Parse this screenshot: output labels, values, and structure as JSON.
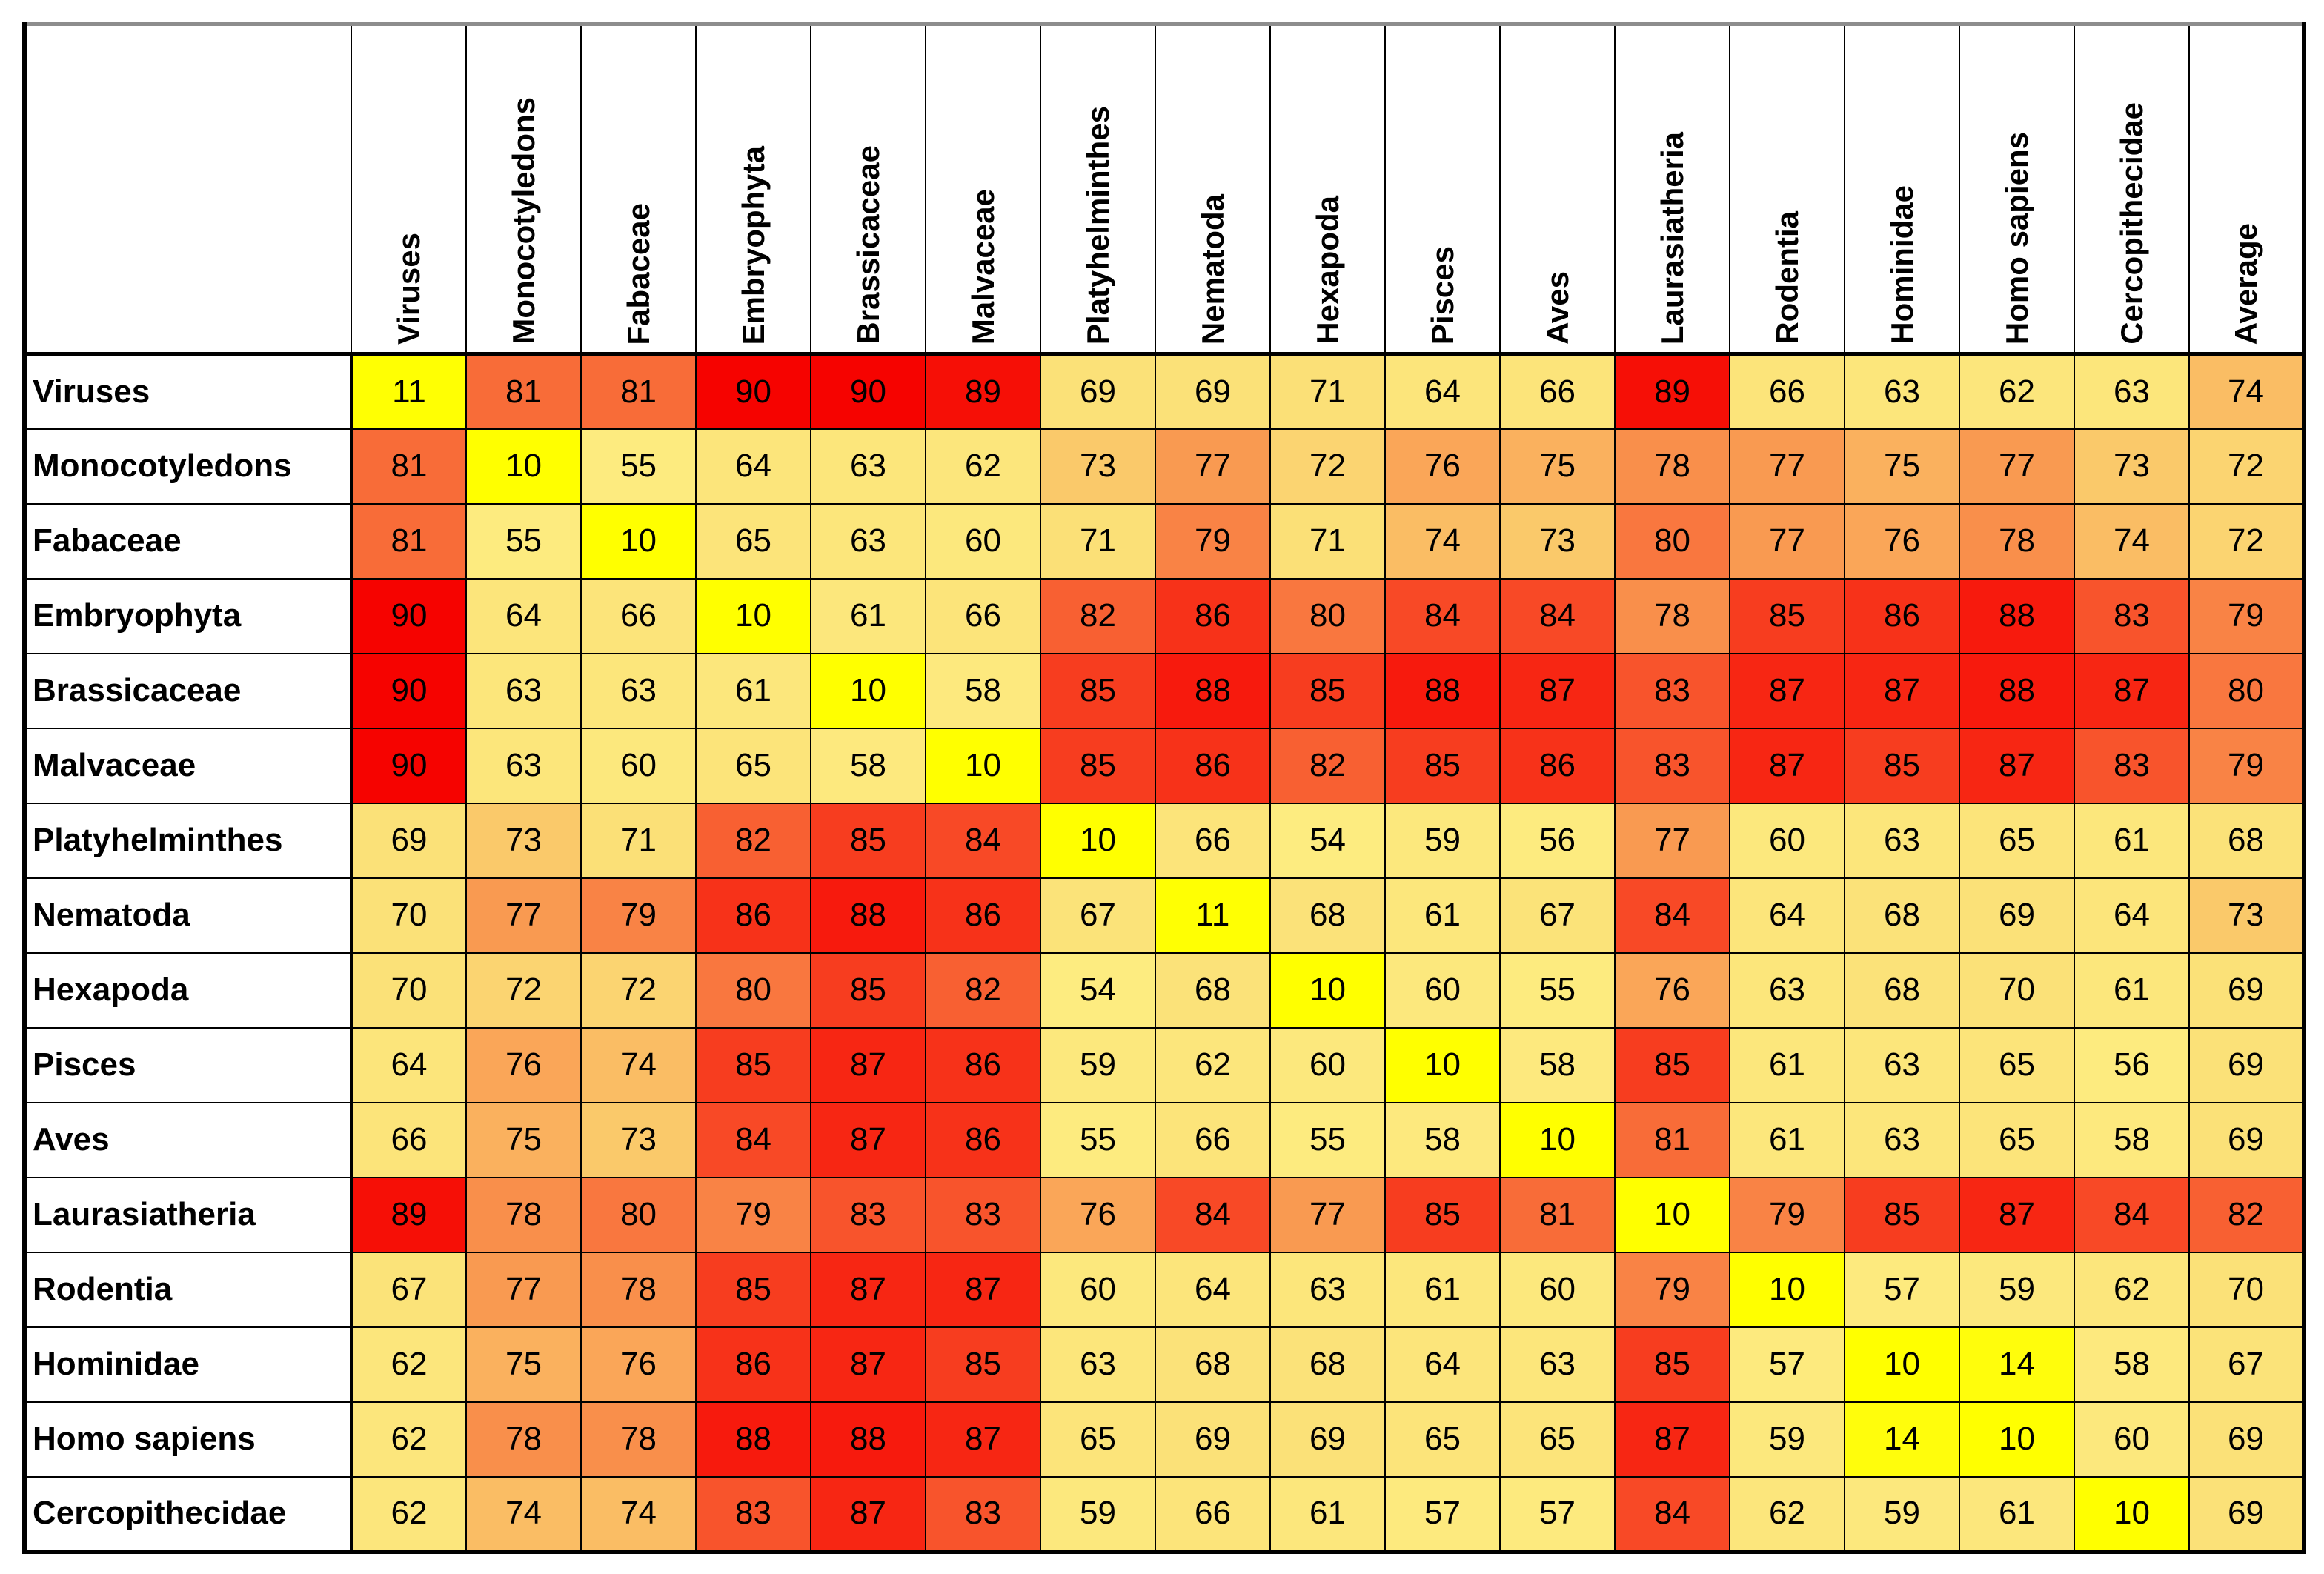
{
  "chart_data": {
    "type": "heatmap",
    "title": "",
    "corner_label": "",
    "columns": [
      "Viruses",
      "Monocotyledons",
      "Fabaceae",
      "Embryophyta",
      "Brassicaceae",
      "Malvaceae",
      "Platyhelminthes",
      "Nematoda",
      "Hexapoda",
      "Pisces",
      "Aves",
      "Laurasiatheria",
      "Rodentia",
      "Hominidae",
      "Homo sapiens",
      "Cercopithecidae",
      "Average"
    ],
    "rows": [
      "Viruses",
      "Monocotyledons",
      "Fabaceae",
      "Embryophyta",
      "Brassicaceae",
      "Malvaceae",
      "Platyhelminthes",
      "Nematoda",
      "Hexapoda",
      "Pisces",
      "Aves",
      "Laurasiatheria",
      "Rodentia",
      "Hominidae",
      "Homo sapiens",
      "Cercopithecidae"
    ],
    "matrix": [
      [
        11,
        81,
        81,
        90,
        90,
        89,
        69,
        69,
        71,
        64,
        66,
        89,
        66,
        63,
        62,
        63,
        74
      ],
      [
        81,
        10,
        55,
        64,
        63,
        62,
        73,
        77,
        72,
        76,
        75,
        78,
        77,
        75,
        77,
        73,
        72
      ],
      [
        81,
        55,
        10,
        65,
        63,
        60,
        71,
        79,
        71,
        74,
        73,
        80,
        77,
        76,
        78,
        74,
        72
      ],
      [
        90,
        64,
        66,
        10,
        61,
        66,
        82,
        86,
        80,
        84,
        84,
        78,
        85,
        86,
        88,
        83,
        79
      ],
      [
        90,
        63,
        63,
        61,
        10,
        58,
        85,
        88,
        85,
        88,
        87,
        83,
        87,
        87,
        88,
        87,
        80
      ],
      [
        90,
        63,
        60,
        65,
        58,
        10,
        85,
        86,
        82,
        85,
        86,
        83,
        87,
        85,
        87,
        83,
        79
      ],
      [
        69,
        73,
        71,
        82,
        85,
        84,
        10,
        66,
        54,
        59,
        56,
        77,
        60,
        63,
        65,
        61,
        68
      ],
      [
        70,
        77,
        79,
        86,
        88,
        86,
        67,
        11,
        68,
        61,
        67,
        84,
        64,
        68,
        69,
        64,
        73
      ],
      [
        70,
        72,
        72,
        80,
        85,
        82,
        54,
        68,
        10,
        60,
        55,
        76,
        63,
        68,
        70,
        61,
        69
      ],
      [
        64,
        76,
        74,
        85,
        87,
        86,
        59,
        62,
        60,
        10,
        58,
        85,
        61,
        63,
        65,
        56,
        69
      ],
      [
        66,
        75,
        73,
        84,
        87,
        86,
        55,
        66,
        55,
        58,
        10,
        81,
        61,
        63,
        65,
        58,
        69
      ],
      [
        89,
        78,
        80,
        79,
        83,
        83,
        76,
        84,
        77,
        85,
        81,
        10,
        79,
        85,
        87,
        84,
        82
      ],
      [
        67,
        77,
        78,
        85,
        87,
        87,
        60,
        64,
        63,
        61,
        60,
        79,
        10,
        57,
        59,
        62,
        70
      ],
      [
        62,
        75,
        76,
        86,
        87,
        85,
        63,
        68,
        68,
        64,
        63,
        85,
        57,
        10,
        14,
        58,
        67
      ],
      [
        62,
        78,
        78,
        88,
        88,
        87,
        65,
        69,
        69,
        65,
        65,
        87,
        59,
        14,
        10,
        60,
        69
      ],
      [
        62,
        74,
        74,
        83,
        87,
        83,
        59,
        66,
        61,
        57,
        57,
        84,
        62,
        59,
        61,
        10,
        69
      ]
    ],
    "value_range": [
      10,
      90
    ],
    "color_scale": {
      "description": "yellow (low) to red (high)",
      "stops": [
        {
          "value": 10,
          "color": "#FFFF00"
        },
        {
          "value": 54,
          "color": "#FDEC80"
        },
        {
          "value": 71,
          "color": "#FBE077"
        },
        {
          "value": 90,
          "color": "#F60300"
        }
      ]
    },
    "text_color": "#000000",
    "grid_color": "#000000",
    "background_color": "#FFFFFF"
  }
}
